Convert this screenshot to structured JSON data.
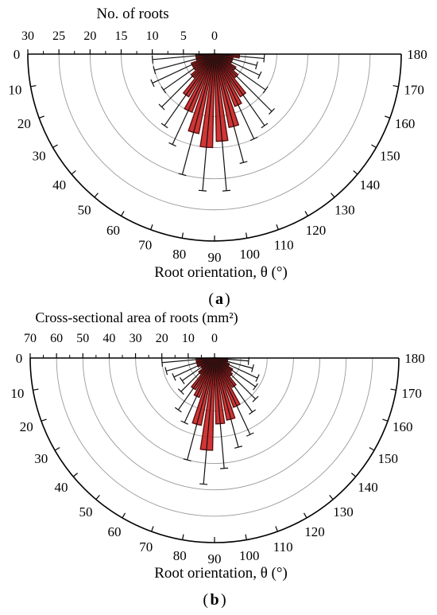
{
  "chart_data": [
    {
      "type": "polar-bar",
      "panel_label": "a",
      "radial_axis_title": "No.  of  roots",
      "radial_ticks": [
        "30",
        "25",
        "20",
        "15",
        "10",
        "5",
        "0"
      ],
      "radial_max": 30,
      "ring_values": [
        5,
        10,
        15,
        20,
        25,
        30
      ],
      "angle_axis_label": "Root orientation, θ (°)",
      "angle_ticks": [
        "0",
        "10",
        "20",
        "30",
        "40",
        "50",
        "60",
        "70",
        "80",
        "90",
        "100",
        "110",
        "120",
        "130",
        "140",
        "150",
        "160",
        "170",
        "180"
      ],
      "bins": [
        {
          "angle": 5,
          "value": 3,
          "error": 7
        },
        {
          "angle": 15,
          "value": 3,
          "error": 7
        },
        {
          "angle": 25,
          "value": 4,
          "error": 7
        },
        {
          "angle": 35,
          "value": 4,
          "error": 6
        },
        {
          "angle": 45,
          "value": 5,
          "error": 7
        },
        {
          "angle": 55,
          "value": 8,
          "error": 6
        },
        {
          "angle": 65,
          "value": 10,
          "error": 6
        },
        {
          "angle": 75,
          "value": 13,
          "error": 7
        },
        {
          "angle": 85,
          "value": 15,
          "error": 7
        },
        {
          "angle": 95,
          "value": 14,
          "error": 8
        },
        {
          "angle": 105,
          "value": 12,
          "error": 6
        },
        {
          "angle": 115,
          "value": 9,
          "error": 6
        },
        {
          "angle": 125,
          "value": 8,
          "error": 6
        },
        {
          "angle": 135,
          "value": 5,
          "error": 8
        },
        {
          "angle": 145,
          "value": 4,
          "error": 6
        },
        {
          "angle": 155,
          "value": 3,
          "error": 5
        },
        {
          "angle": 165,
          "value": 3,
          "error": 4
        },
        {
          "angle": 175,
          "value": 4,
          "error": 4
        }
      ],
      "colors": {
        "fill": "#cc1f1f",
        "edge": "#5a0f0f",
        "error": "#111111",
        "ring": "#9a9a9a"
      }
    },
    {
      "type": "polar-bar",
      "panel_label": "b",
      "radial_axis_title": "Cross-sectional area of  roots (mm²)",
      "radial_ticks": [
        "70",
        "60",
        "50",
        "40",
        "30",
        "20",
        "10",
        "0"
      ],
      "radial_max": 70,
      "ring_values": [
        10,
        20,
        30,
        40,
        50,
        60,
        70
      ],
      "angle_axis_label": "Root orientation, θ (°)",
      "angle_ticks": [
        "0",
        "10",
        "20",
        "30",
        "40",
        "50",
        "60",
        "70",
        "80",
        "90",
        "100",
        "110",
        "120",
        "130",
        "140",
        "150",
        "160",
        "170",
        "180"
      ],
      "bins": [
        {
          "angle": 5,
          "value": 7,
          "error": 13
        },
        {
          "angle": 15,
          "value": 7,
          "error": 12
        },
        {
          "angle": 25,
          "value": 7,
          "error": 10
        },
        {
          "angle": 35,
          "value": 6,
          "error": 9
        },
        {
          "angle": 45,
          "value": 8,
          "error": 10
        },
        {
          "angle": 55,
          "value": 14,
          "error": 10
        },
        {
          "angle": 65,
          "value": 16,
          "error": 11
        },
        {
          "angle": 75,
          "value": 26,
          "error": 14
        },
        {
          "angle": 85,
          "value": 35,
          "error": 13
        },
        {
          "angle": 95,
          "value": 25,
          "error": 17
        },
        {
          "angle": 105,
          "value": 24,
          "error": 11
        },
        {
          "angle": 115,
          "value": 20,
          "error": 12
        },
        {
          "angle": 125,
          "value": 13,
          "error": 12
        },
        {
          "angle": 135,
          "value": 9,
          "error": 13
        },
        {
          "angle": 145,
          "value": 8,
          "error": 11
        },
        {
          "angle": 155,
          "value": 6,
          "error": 12
        },
        {
          "angle": 165,
          "value": 5,
          "error": 10
        },
        {
          "angle": 175,
          "value": 5,
          "error": 8
        }
      ],
      "colors": {
        "fill": "#cc1f1f",
        "edge": "#5a0f0f",
        "error": "#111111",
        "ring": "#9a9a9a"
      }
    }
  ]
}
